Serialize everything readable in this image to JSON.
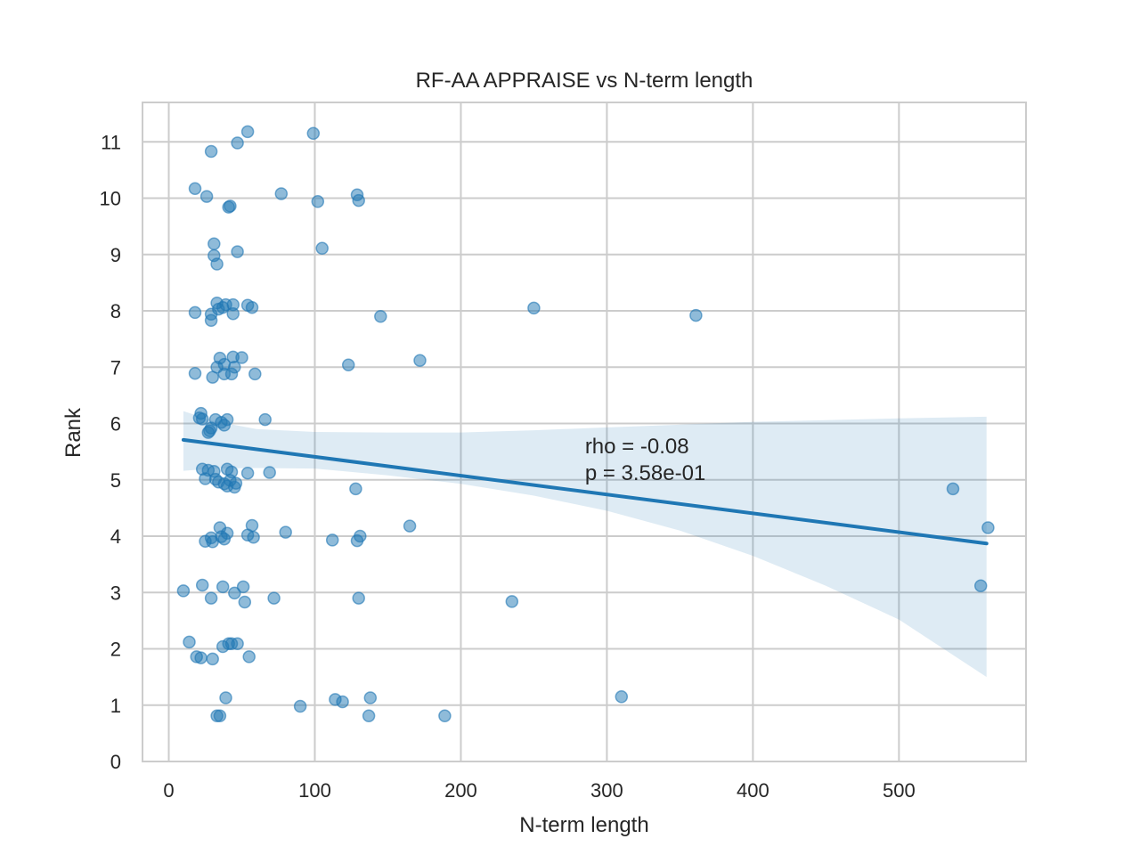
{
  "chart_data": {
    "type": "scatter",
    "title": "RF-AA APPRAISE vs N-term length",
    "xlabel": "N-term length",
    "ylabel": "Rank",
    "xlim": [
      -18,
      587
    ],
    "ylim": [
      0,
      11.7
    ],
    "xticks": [
      0,
      100,
      200,
      300,
      400,
      500
    ],
    "yticks": [
      0,
      1,
      2,
      3,
      4,
      5,
      6,
      7,
      8,
      9,
      10,
      11
    ],
    "grid": true,
    "colors": {
      "points": "#1f77b4",
      "line": "#1f77b4",
      "band": "#1f77b4",
      "grid": "#cccccc",
      "frame": "#cccccc"
    },
    "annotation": {
      "line1": "rho = -0.08",
      "line2": "p = 3.58e-01",
      "x": 285,
      "y": 5.5
    },
    "regression": {
      "x": [
        10,
        560
      ],
      "y": [
        5.71,
        3.87
      ]
    },
    "confidence_band": {
      "x": [
        10,
        30,
        60,
        100,
        150,
        200,
        250,
        300,
        350,
        400,
        450,
        500,
        560
      ],
      "lower": [
        5.16,
        5.2,
        5.21,
        5.2,
        5.08,
        4.93,
        4.72,
        4.45,
        4.1,
        3.65,
        3.12,
        2.52,
        1.5
      ],
      "upper": [
        6.22,
        6.05,
        5.9,
        5.85,
        5.84,
        5.84,
        5.88,
        5.93,
        5.98,
        6.03,
        6.06,
        6.09,
        6.12
      ]
    },
    "points": [
      {
        "x": 54,
        "y": 11.18
      },
      {
        "x": 99,
        "y": 11.15
      },
      {
        "x": 47,
        "y": 10.98
      },
      {
        "x": 29,
        "y": 10.83
      },
      {
        "x": 18,
        "y": 10.17
      },
      {
        "x": 26,
        "y": 10.03
      },
      {
        "x": 77,
        "y": 10.08
      },
      {
        "x": 129,
        "y": 10.06
      },
      {
        "x": 102,
        "y": 9.94
      },
      {
        "x": 130,
        "y": 9.96
      },
      {
        "x": 41,
        "y": 9.84
      },
      {
        "x": 42,
        "y": 9.86
      },
      {
        "x": 31,
        "y": 9.19
      },
      {
        "x": 105,
        "y": 9.11
      },
      {
        "x": 47,
        "y": 9.05
      },
      {
        "x": 31,
        "y": 8.98
      },
      {
        "x": 33,
        "y": 8.83
      },
      {
        "x": 33,
        "y": 8.14
      },
      {
        "x": 39,
        "y": 8.11
      },
      {
        "x": 44,
        "y": 8.11
      },
      {
        "x": 54,
        "y": 8.1
      },
      {
        "x": 57,
        "y": 8.06
      },
      {
        "x": 34,
        "y": 8.03
      },
      {
        "x": 37,
        "y": 8.06
      },
      {
        "x": 18,
        "y": 7.97
      },
      {
        "x": 29,
        "y": 7.94
      },
      {
        "x": 44,
        "y": 7.95
      },
      {
        "x": 29,
        "y": 7.83
      },
      {
        "x": 145,
        "y": 7.9
      },
      {
        "x": 250,
        "y": 8.05
      },
      {
        "x": 361,
        "y": 7.92
      },
      {
        "x": 35,
        "y": 7.16
      },
      {
        "x": 44,
        "y": 7.18
      },
      {
        "x": 50,
        "y": 7.17
      },
      {
        "x": 172,
        "y": 7.12
      },
      {
        "x": 123,
        "y": 7.04
      },
      {
        "x": 33,
        "y": 7.0
      },
      {
        "x": 38,
        "y": 7.05
      },
      {
        "x": 45,
        "y": 7.0
      },
      {
        "x": 18,
        "y": 6.89
      },
      {
        "x": 30,
        "y": 6.82
      },
      {
        "x": 38,
        "y": 6.88
      },
      {
        "x": 43,
        "y": 6.88
      },
      {
        "x": 59,
        "y": 6.88
      },
      {
        "x": 22,
        "y": 6.18
      },
      {
        "x": 21,
        "y": 6.1
      },
      {
        "x": 23,
        "y": 6.08
      },
      {
        "x": 32,
        "y": 6.07
      },
      {
        "x": 40,
        "y": 6.07
      },
      {
        "x": 66,
        "y": 6.07
      },
      {
        "x": 36,
        "y": 6.02
      },
      {
        "x": 38,
        "y": 5.97
      },
      {
        "x": 29,
        "y": 5.92
      },
      {
        "x": 28,
        "y": 5.87
      },
      {
        "x": 27,
        "y": 5.84
      },
      {
        "x": 23,
        "y": 5.19
      },
      {
        "x": 27,
        "y": 5.17
      },
      {
        "x": 31,
        "y": 5.15
      },
      {
        "x": 40,
        "y": 5.19
      },
      {
        "x": 43,
        "y": 5.14
      },
      {
        "x": 54,
        "y": 5.12
      },
      {
        "x": 69,
        "y": 5.13
      },
      {
        "x": 25,
        "y": 5.02
      },
      {
        "x": 32,
        "y": 5.01
      },
      {
        "x": 34,
        "y": 4.96
      },
      {
        "x": 38,
        "y": 4.93
      },
      {
        "x": 42,
        "y": 4.99
      },
      {
        "x": 40,
        "y": 4.89
      },
      {
        "x": 45,
        "y": 4.87
      },
      {
        "x": 46,
        "y": 4.94
      },
      {
        "x": 128,
        "y": 4.84
      },
      {
        "x": 537,
        "y": 4.84
      },
      {
        "x": 35,
        "y": 4.15
      },
      {
        "x": 57,
        "y": 4.19
      },
      {
        "x": 165,
        "y": 4.18
      },
      {
        "x": 561,
        "y": 4.15
      },
      {
        "x": 80,
        "y": 4.07
      },
      {
        "x": 40,
        "y": 4.05
      },
      {
        "x": 54,
        "y": 4.02
      },
      {
        "x": 131,
        "y": 4.0
      },
      {
        "x": 29,
        "y": 3.97
      },
      {
        "x": 36,
        "y": 3.99
      },
      {
        "x": 58,
        "y": 3.98
      },
      {
        "x": 38,
        "y": 3.95
      },
      {
        "x": 112,
        "y": 3.93
      },
      {
        "x": 25,
        "y": 3.91
      },
      {
        "x": 30,
        "y": 3.9
      },
      {
        "x": 129,
        "y": 3.92
      },
      {
        "x": 10,
        "y": 3.03
      },
      {
        "x": 23,
        "y": 3.13
      },
      {
        "x": 37,
        "y": 3.1
      },
      {
        "x": 51,
        "y": 3.1
      },
      {
        "x": 45,
        "y": 2.99
      },
      {
        "x": 29,
        "y": 2.9
      },
      {
        "x": 72,
        "y": 2.9
      },
      {
        "x": 130,
        "y": 2.9
      },
      {
        "x": 52,
        "y": 2.83
      },
      {
        "x": 235,
        "y": 2.84
      },
      {
        "x": 556,
        "y": 3.12
      },
      {
        "x": 14,
        "y": 2.12
      },
      {
        "x": 41,
        "y": 2.09
      },
      {
        "x": 43,
        "y": 2.09
      },
      {
        "x": 47,
        "y": 2.09
      },
      {
        "x": 37,
        "y": 2.04
      },
      {
        "x": 19,
        "y": 1.86
      },
      {
        "x": 22,
        "y": 1.84
      },
      {
        "x": 30,
        "y": 1.82
      },
      {
        "x": 55,
        "y": 1.86
      },
      {
        "x": 39,
        "y": 1.13
      },
      {
        "x": 114,
        "y": 1.1
      },
      {
        "x": 119,
        "y": 1.06
      },
      {
        "x": 138,
        "y": 1.13
      },
      {
        "x": 310,
        "y": 1.15
      },
      {
        "x": 90,
        "y": 0.98
      },
      {
        "x": 33,
        "y": 0.81
      },
      {
        "x": 35,
        "y": 0.81
      },
      {
        "x": 137,
        "y": 0.81
      },
      {
        "x": 189,
        "y": 0.81
      }
    ]
  }
}
